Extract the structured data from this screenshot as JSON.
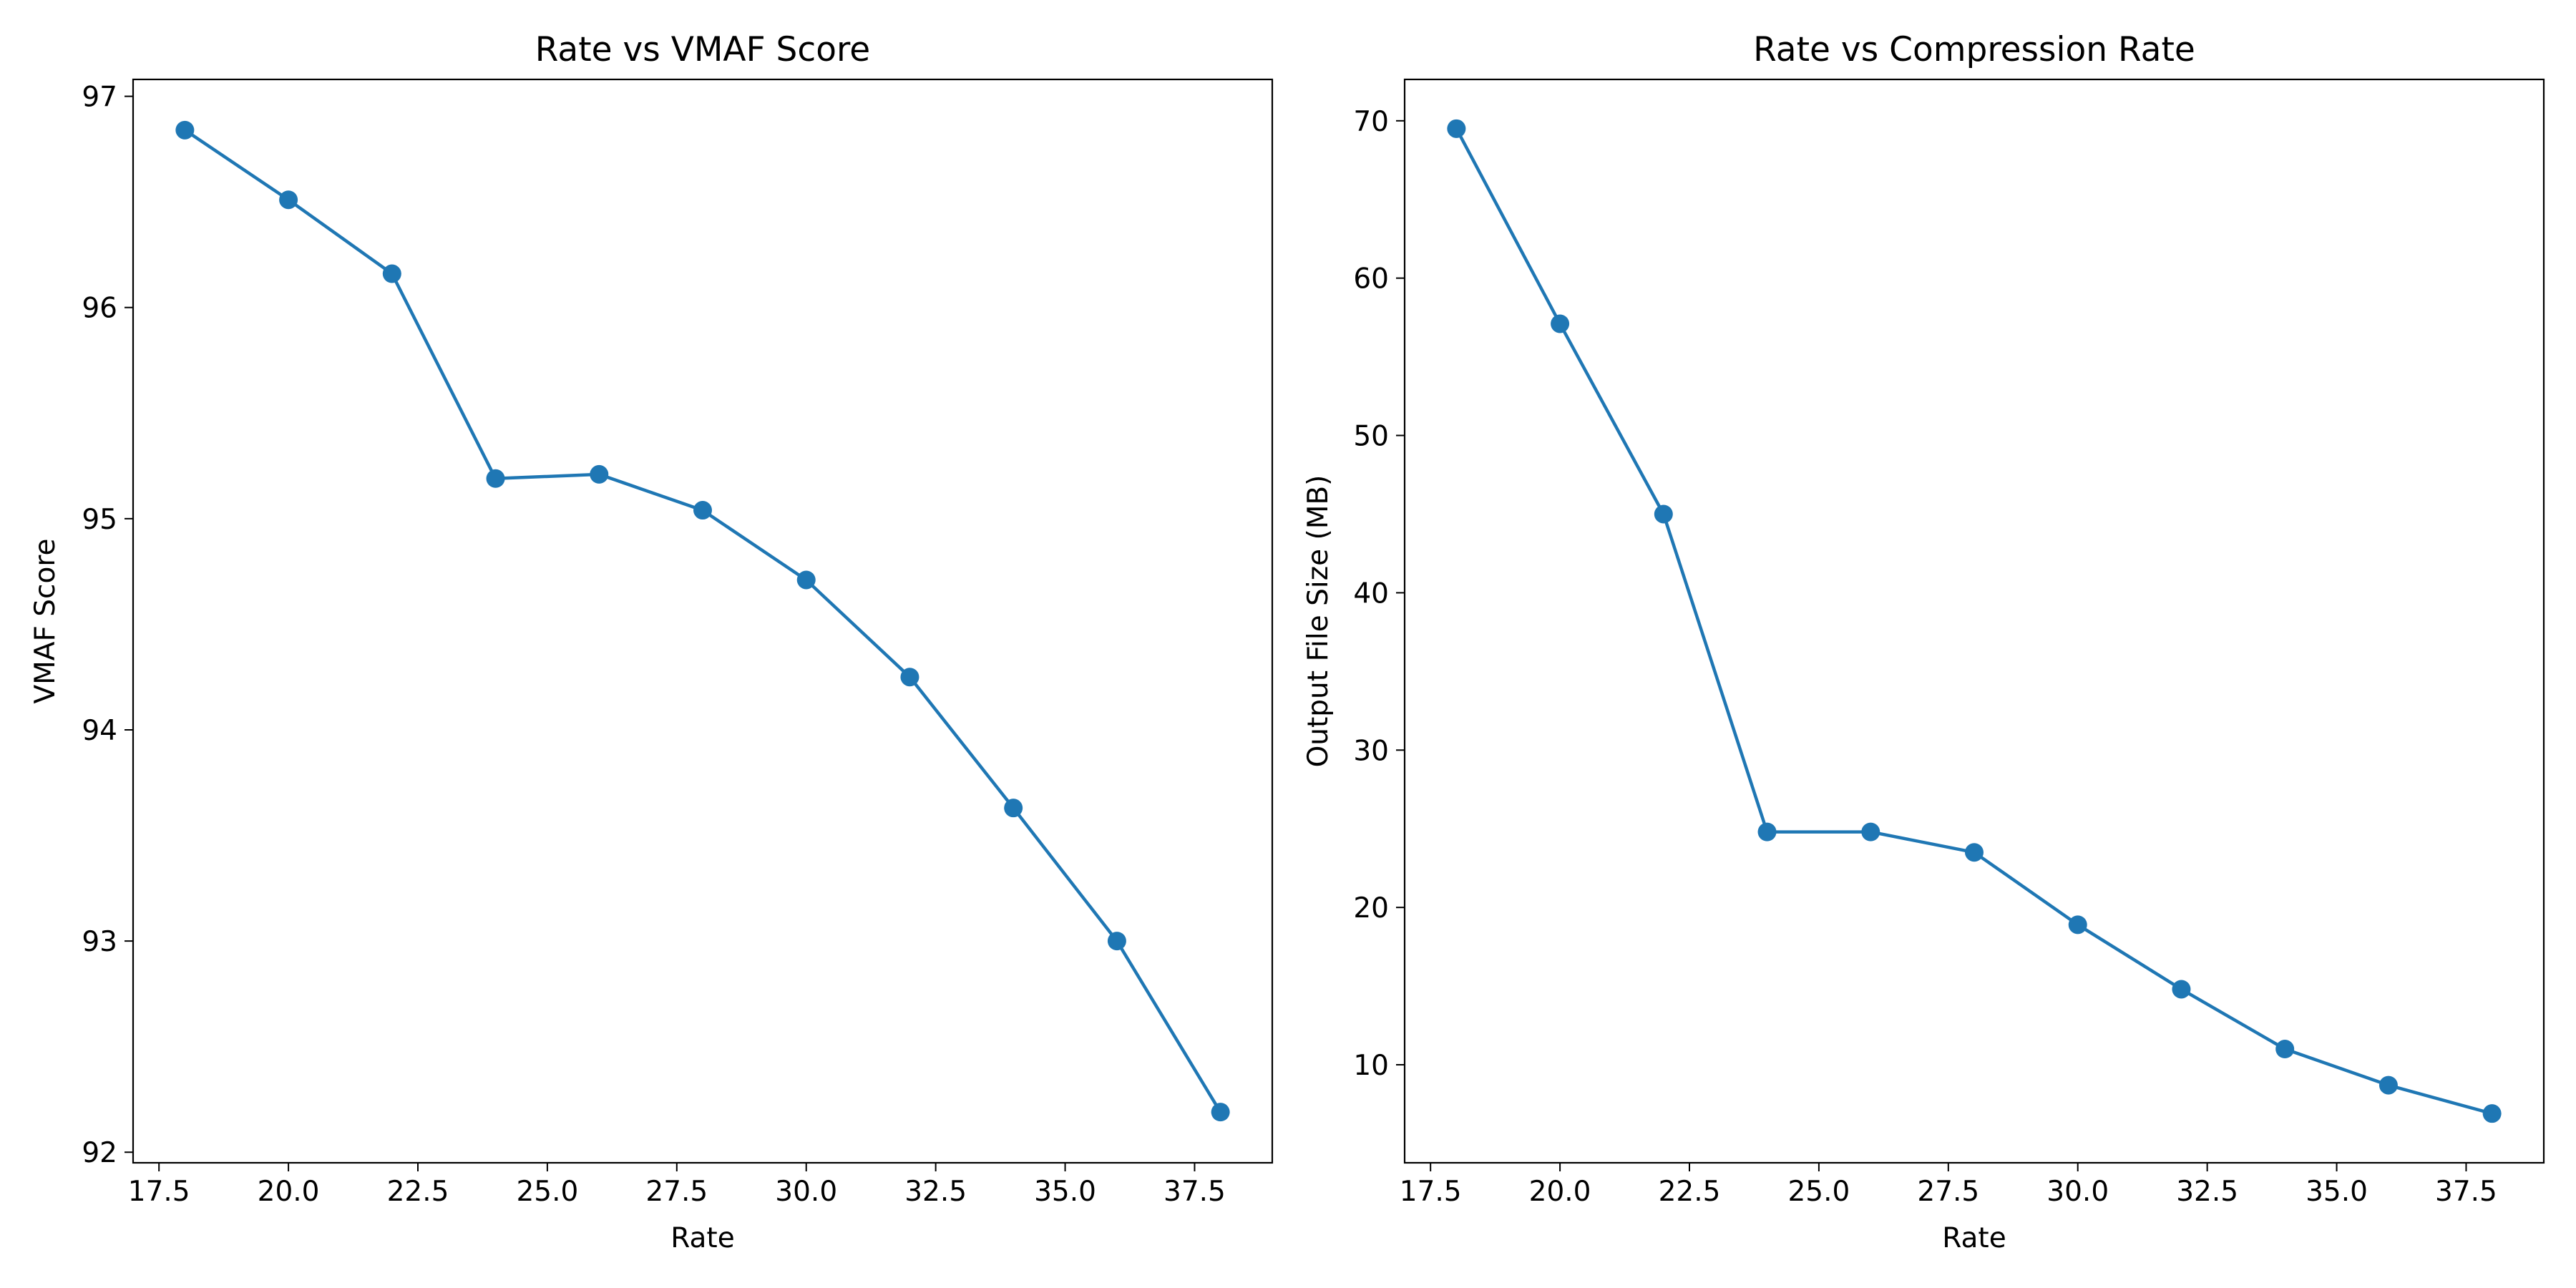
{
  "colors": {
    "series": "#1f77b4",
    "axes": "#000000",
    "background": "#ffffff"
  },
  "chart_data": [
    {
      "type": "line",
      "title": "Rate vs VMAF Score",
      "xlabel": "Rate",
      "ylabel": "VMAF Score",
      "x": [
        18,
        20,
        22,
        24,
        26,
        28,
        30,
        32,
        34,
        36,
        38
      ],
      "series": [
        {
          "values": [
            96.84,
            96.51,
            96.16,
            95.19,
            95.21,
            95.04,
            94.71,
            94.25,
            93.63,
            93.0,
            92.19
          ],
          "marker": "circle"
        }
      ],
      "xlim": [
        17.0,
        39.0
      ],
      "ylim": [
        91.95,
        97.08
      ],
      "xticks": [
        "17.5",
        "20.0",
        "22.5",
        "25.0",
        "27.5",
        "30.0",
        "32.5",
        "35.0",
        "37.5"
      ],
      "yticks": [
        "92",
        "93",
        "94",
        "95",
        "96",
        "97"
      ],
      "grid": false,
      "legend": "none"
    },
    {
      "type": "line",
      "title": "Rate vs Compression Rate",
      "xlabel": "Rate",
      "ylabel": "Output File Size (MB)",
      "x": [
        18,
        20,
        22,
        24,
        26,
        28,
        30,
        32,
        34,
        36,
        38
      ],
      "series": [
        {
          "values": [
            69.5,
            57.1,
            45.0,
            24.8,
            24.8,
            23.5,
            18.9,
            14.8,
            11.0,
            8.7,
            6.9
          ],
          "marker": "circle"
        }
      ],
      "xlim": [
        17.0,
        39.0
      ],
      "ylim": [
        3.77,
        72.63
      ],
      "xticks": [
        "17.5",
        "20.0",
        "22.5",
        "25.0",
        "27.5",
        "30.0",
        "32.5",
        "35.0",
        "37.5"
      ],
      "yticks": [
        "10",
        "20",
        "30",
        "40",
        "50",
        "60",
        "70"
      ],
      "grid": false,
      "legend": "none"
    }
  ]
}
